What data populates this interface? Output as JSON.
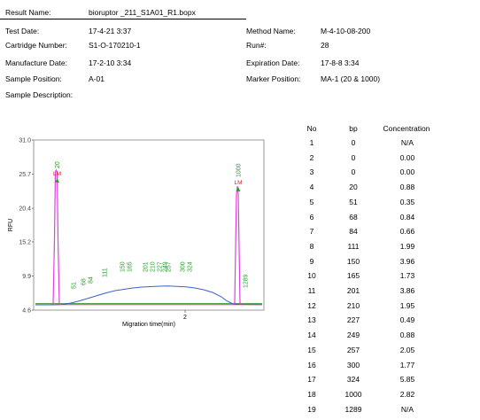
{
  "header": {
    "result_name_label": "Result Name:",
    "result_name": "bioruptor _211_S1A01_R1.bopx",
    "test_date_label": "Test Date:",
    "test_date": "17-4-21 3:37",
    "cartridge_label": "Cartridge Number:",
    "cartridge": "S1-O-170210-1",
    "manufacture_label": "Manufacture Date:",
    "manufacture": "17-2-10 3:34",
    "sample_position_label": "Sample Position:",
    "sample_position": "A-01",
    "sample_description_label": "Sample Description:",
    "method_label": "Method Name:",
    "method": "M-4-10-08-200",
    "run_label": "Run#:",
    "run": "28",
    "expiration_label": "Expiration Date:",
    "expiration": "17-8-8 3:34",
    "marker_label": "Marker Position:",
    "marker": "MA-1 (20 & 1000)"
  },
  "table": {
    "columns": [
      "No",
      "bp",
      "Concentration"
    ],
    "rows": [
      [
        "1",
        "0",
        "N/A"
      ],
      [
        "2",
        "0",
        "0.00"
      ],
      [
        "3",
        "0",
        "0.00"
      ],
      [
        "4",
        "20",
        "0.88"
      ],
      [
        "5",
        "51",
        "0.35"
      ],
      [
        "6",
        "68",
        "0.84"
      ],
      [
        "7",
        "84",
        "0.66"
      ],
      [
        "8",
        "111",
        "1.99"
      ],
      [
        "9",
        "150",
        "3.96"
      ],
      [
        "10",
        "165",
        "1.73"
      ],
      [
        "11",
        "201",
        "3.86"
      ],
      [
        "12",
        "210",
        "1.95"
      ],
      [
        "13",
        "227",
        "0.49"
      ],
      [
        "14",
        "249",
        "0.88"
      ],
      [
        "15",
        "257",
        "2.05"
      ],
      [
        "16",
        "300",
        "1.77"
      ],
      [
        "17",
        "324",
        "5.85"
      ],
      [
        "18",
        "1000",
        "2.82"
      ],
      [
        "19",
        "1289",
        "N/A"
      ]
    ]
  },
  "chart_data": {
    "type": "line",
    "xlabel": "Migration time(min)",
    "ylabel": "RFU",
    "y_ticks": [
      "31.0",
      "25.7",
      "20.4",
      "15.2",
      "9.9",
      "4.6"
    ],
    "x_ticks": [
      "2"
    ],
    "ylim": [
      4.6,
      31.0
    ],
    "marker_tag": "LM",
    "colors": {
      "trace": "#3a63c8",
      "marker": "#e040e0",
      "baseline_red": "#d03030",
      "baseline_green": "#3a9a3a",
      "peak_label": "#2aa02a",
      "marker_label": "#d02020"
    },
    "peaks": [
      {
        "label": "20",
        "marker": true
      },
      {
        "label": "51"
      },
      {
        "label": "68"
      },
      {
        "label": "84"
      },
      {
        "label": "111"
      },
      {
        "label": "150"
      },
      {
        "label": "165"
      },
      {
        "label": "201"
      },
      {
        "label": "210"
      },
      {
        "label": "227"
      },
      {
        "label": "249"
      },
      {
        "label": "257"
      },
      {
        "label": "300"
      },
      {
        "label": "324"
      },
      {
        "label": "1000",
        "marker": true
      },
      {
        "label": "1289"
      }
    ]
  }
}
